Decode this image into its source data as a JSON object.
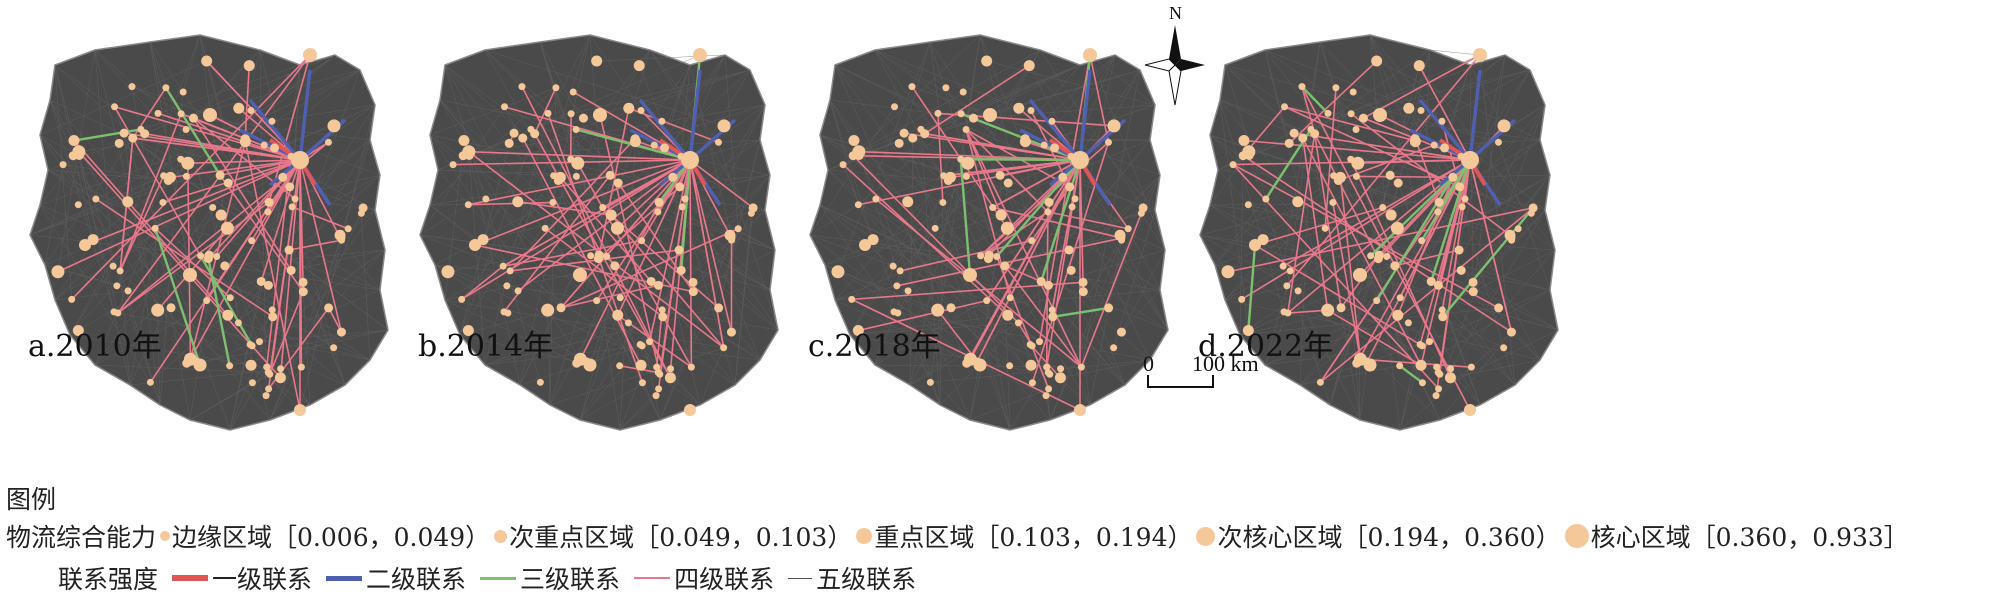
{
  "panels": [
    {
      "label": "a.2010年",
      "year": 2010
    },
    {
      "label": "b.2014年",
      "year": 2014
    },
    {
      "label": "c.2018年",
      "year": 2018
    },
    {
      "label": "d.2022年",
      "year": 2022
    }
  ],
  "compass": {
    "label": "N"
  },
  "scale_bar": {
    "start": "0",
    "end": "100 km"
  },
  "legend": {
    "title": "图例",
    "capability": {
      "label": "物流综合能力",
      "classes": [
        {
          "name": "边缘区域",
          "range": "［0.006，0.049）"
        },
        {
          "name": "次重点区域",
          "range": "［0.049，0.103）"
        },
        {
          "name": "重点区域",
          "range": "［0.103，0.194）"
        },
        {
          "name": "次核心区域",
          "range": "［0.194，0.360）"
        },
        {
          "name": "核心区域",
          "range": "［0.360，0.933］"
        }
      ]
    },
    "linkage": {
      "label": "联系强度",
      "levels": [
        {
          "name": "一级联系",
          "color": "#e05555"
        },
        {
          "name": "二级联系",
          "color": "#5060b0"
        },
        {
          "name": "三级联系",
          "color": "#7cc070"
        },
        {
          "name": "四级联系",
          "color": "#e8788a"
        },
        {
          "name": "五级联系",
          "color": "#555555"
        }
      ]
    }
  },
  "colors": {
    "node": "#f5c89a",
    "background_mesh": "#4a4a4a",
    "outline": "#888888"
  }
}
